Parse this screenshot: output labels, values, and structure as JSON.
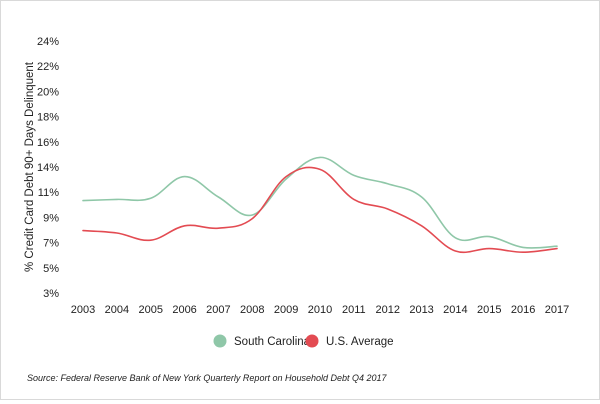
{
  "chart_data": {
    "type": "line",
    "title": "",
    "xlabel": "",
    "ylabel": "% Credit Card Debt 90+ Days Delinquent",
    "x": [
      "2003",
      "2004",
      "2005",
      "2006",
      "2007",
      "2008",
      "2009",
      "2010",
      "2011",
      "2012",
      "2013",
      "2014",
      "2015",
      "2016",
      "2017"
    ],
    "yticks": [
      "3%",
      "5%",
      "7%",
      "9%",
      "11%",
      "14%",
      "16%",
      "18%",
      "20%",
      "22%",
      "24%"
    ],
    "ylim": [
      3,
      24
    ],
    "grid": false,
    "legend_position": "bottom",
    "series": [
      {
        "name": "South Carolina",
        "color": "#8fc7a8",
        "values": [
          10.7,
          10.8,
          10.9,
          12.7,
          11.0,
          9.5,
          12.5,
          14.3,
          12.8,
          12.1,
          11.0,
          7.6,
          7.7,
          6.8,
          6.9
        ]
      },
      {
        "name": "U.S. Average",
        "color": "#e34b52",
        "values": [
          8.2,
          8.0,
          7.4,
          8.6,
          8.4,
          9.2,
          12.7,
          13.3,
          10.8,
          10.0,
          8.6,
          6.5,
          6.7,
          6.4,
          6.7
        ]
      }
    ]
  },
  "source": "Source: Federal Reserve Bank of New York Quarterly Report on Household Debt Q4 2017"
}
